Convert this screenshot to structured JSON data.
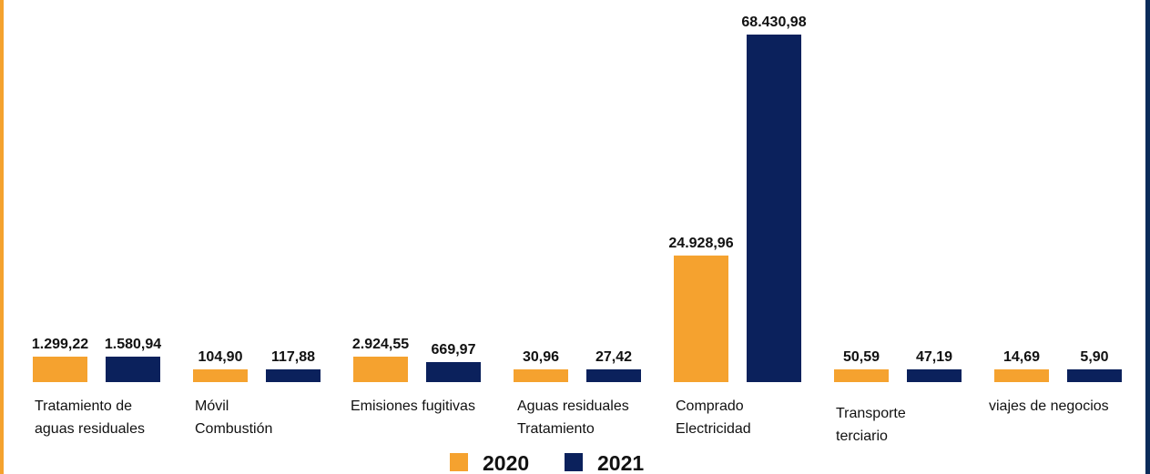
{
  "chart_data": {
    "type": "bar",
    "categories": [
      [
        "Tratamiento de",
        "aguas residuales"
      ],
      [
        "Móvil",
        "Combustión"
      ],
      [
        "Emisiones fugitivas"
      ],
      [
        "Aguas residuales",
        "Tratamiento"
      ],
      [
        "Comprado",
        "Electricidad"
      ],
      [
        "Transporte",
        "terciario"
      ],
      [
        "viajes de negocios"
      ]
    ],
    "series": [
      {
        "name": "2020",
        "color": "#F5A22F",
        "values": [
          1299.22,
          104.9,
          2924.55,
          30.96,
          24928.96,
          50.59,
          14.69
        ],
        "labels": [
          "1.299,22",
          "104,90",
          "2.924,55",
          "30,96",
          "24.928,96",
          "50,59",
          "14,69"
        ]
      },
      {
        "name": "2021",
        "color": "#0B215C",
        "values": [
          1580.94,
          117.88,
          669.97,
          27.42,
          68430.98,
          47.19,
          5.9
        ],
        "labels": [
          "1.580,94",
          "117,88",
          "669,97",
          "27,42",
          "68.430,98",
          "47,19",
          "5,90"
        ]
      }
    ],
    "legend": {
      "position": "bottom-center",
      "entries": [
        "2020",
        "2021"
      ]
    },
    "grid": false,
    "axes_visible": false
  }
}
